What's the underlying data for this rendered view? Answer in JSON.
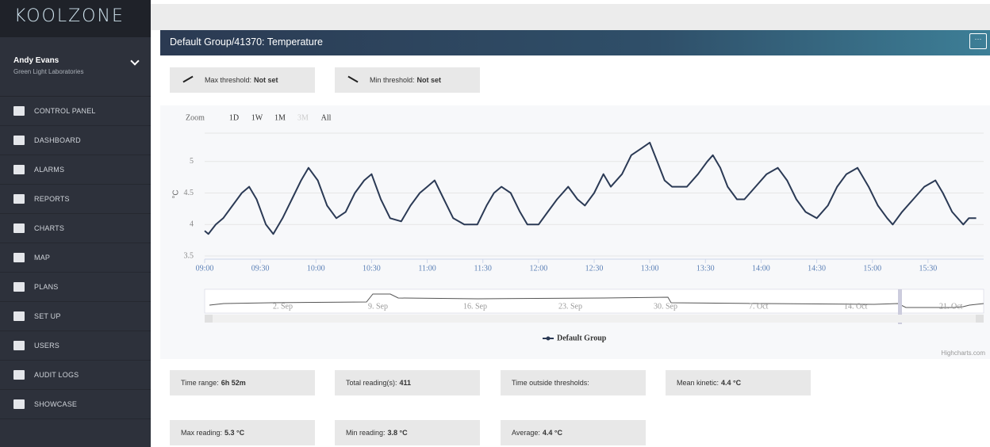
{
  "sidebar": {
    "logo": "KOOLZONE",
    "user": "Andy Evans",
    "organization": "Green Light Laboratories",
    "menu": [
      "CONTROL PANEL",
      "DASHBOARD",
      "ALARMS",
      "REPORTS",
      "CHARTS",
      "MAP",
      "PLANS",
      "SET UP",
      "USERS",
      "AUDIT LOGS",
      "SHOWCASE"
    ]
  },
  "panel": {
    "title": "Default Group/41370: Temperature",
    "thresholds": [
      {
        "label": "Max threshold:",
        "value": "Not set"
      },
      {
        "label": "Min threshold:",
        "value": "Not set"
      }
    ],
    "stats": [
      {
        "label": "Time range:",
        "value": "6h 52m"
      },
      {
        "label": "Total reading(s):",
        "value": "411"
      },
      {
        "label": "Time outside thresholds:"
      },
      {
        "label": "Mean kinetic:",
        "value": "4.4 °C"
      }
    ],
    "stats2": [
      {
        "label": "Max reading:",
        "value": "5.3 °C"
      },
      {
        "label": "Min reading:",
        "value": "3.8 °C"
      },
      {
        "label": "Average:",
        "value": "4.4 °C"
      }
    ]
  },
  "chart_data": {
    "type": "line",
    "y_label": "°C",
    "zoom_label": "Zoom",
    "zoom_buttons": [
      "1D",
      "1W",
      "1M",
      "3M",
      "All"
    ],
    "navigator_labels": [
      "2. Sep",
      "9. Sep",
      "16. Sep",
      "23. Sep",
      "30. Sep",
      "7. Oct",
      "14. Oct",
      "21. Oct"
    ],
    "credit": "Highcharts.com",
    "x": [
      "09:00",
      "09:02",
      "09:06",
      "09:10",
      "09:15",
      "09:20",
      "09:24",
      "09:28",
      "09:33",
      "09:37",
      "09:42",
      "09:47",
      "09:52",
      "09:56",
      "10:01",
      "10:06",
      "10:11",
      "10:16",
      "10:21",
      "10:26",
      "10:30",
      "10:35",
      "10:40",
      "10:46",
      "10:51",
      "10:56",
      "11:00",
      "11:04",
      "11:09",
      "11:14",
      "11:20",
      "11:27",
      "11:32",
      "11:36",
      "11:40",
      "11:45",
      "11:50",
      "11:54",
      "12:00",
      "12:05",
      "12:10",
      "12:16",
      "12:21",
      "12:25",
      "12:30",
      "12:35",
      "12:39",
      "12:45",
      "12:50",
      "12:55",
      "13:00",
      "13:04",
      "13:08",
      "13:12",
      "13:20",
      "13:26",
      "13:31",
      "13:34",
      "13:38",
      "13:42",
      "13:47",
      "13:51",
      "13:57",
      "14:03",
      "14:09",
      "14:14",
      "14:19",
      "14:24",
      "14:30",
      "14:36",
      "14:41",
      "14:46",
      "14:52",
      "14:58",
      "15:03",
      "15:08",
      "15:11",
      "15:16",
      "15:22",
      "15:28",
      "15:34",
      "15:38",
      "15:43",
      "15:49",
      "15:52",
      "15:56"
    ],
    "series": [
      {
        "name": "Default Group",
        "color": "#2b3a55",
        "values": [
          3.9,
          3.85,
          4.0,
          4.1,
          4.3,
          4.5,
          4.6,
          4.4,
          4.0,
          3.85,
          4.1,
          4.4,
          4.7,
          4.9,
          4.7,
          4.3,
          4.1,
          4.2,
          4.5,
          4.7,
          4.8,
          4.4,
          4.1,
          4.05,
          4.3,
          4.5,
          4.6,
          4.7,
          4.4,
          4.1,
          4.0,
          4.0,
          4.3,
          4.5,
          4.6,
          4.5,
          4.2,
          4.0,
          4.0,
          4.2,
          4.4,
          4.6,
          4.4,
          4.3,
          4.5,
          4.8,
          4.6,
          4.8,
          5.1,
          5.2,
          5.3,
          5.0,
          4.7,
          4.6,
          4.6,
          4.8,
          5.0,
          5.1,
          4.9,
          4.6,
          4.4,
          4.4,
          4.6,
          4.8,
          4.9,
          4.7,
          4.4,
          4.2,
          4.1,
          4.3,
          4.6,
          4.8,
          4.9,
          4.6,
          4.3,
          4.1,
          4.0,
          4.2,
          4.4,
          4.6,
          4.7,
          4.5,
          4.2,
          4.0,
          4.1,
          4.1
        ]
      }
    ],
    "xlim": [
      "09:00",
      "16:00"
    ],
    "xticks": [
      "09:00",
      "09:30",
      "10:00",
      "10:30",
      "11:00",
      "11:30",
      "12:00",
      "12:30",
      "13:00",
      "13:30",
      "14:00",
      "14:30",
      "15:00",
      "15:30"
    ],
    "ylim": [
      3.45,
      5.45
    ],
    "yticks": [
      3.5,
      4,
      4.5,
      5
    ],
    "grid": true
  }
}
